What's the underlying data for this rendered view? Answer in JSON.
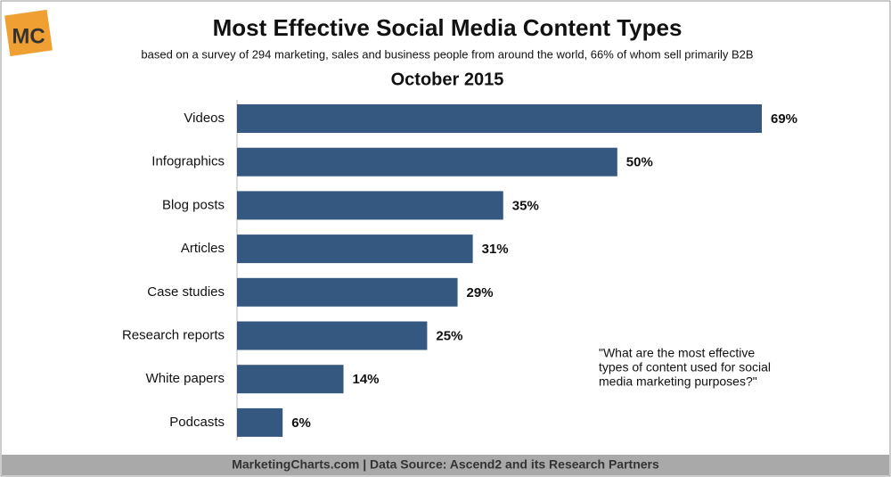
{
  "logo": "MC",
  "chart_data": {
    "type": "bar",
    "orientation": "horizontal",
    "title": "Most Effective Social Media Content Types",
    "subtitle": "based on a survey of 294 marketing, sales and business people from around the world, 66% of whom sell primarily B2B",
    "date": "October 2015",
    "categories": [
      "Videos",
      "Infographics",
      "Blog posts",
      "Articles",
      "Case studies",
      "Research reports",
      "White papers",
      "Podcasts"
    ],
    "values": [
      69,
      50,
      35,
      31,
      29,
      25,
      14,
      6
    ],
    "value_labels": [
      "69%",
      "50%",
      "35%",
      "31%",
      "29%",
      "25%",
      "14%",
      "6%"
    ],
    "color": "#34587f",
    "note": [
      "\"What are the most effective",
      "types of content used for social",
      "media marketing purposes?\""
    ],
    "footer": "MarketingCharts.com | Data Source: Ascend2 and its Research Partners"
  }
}
